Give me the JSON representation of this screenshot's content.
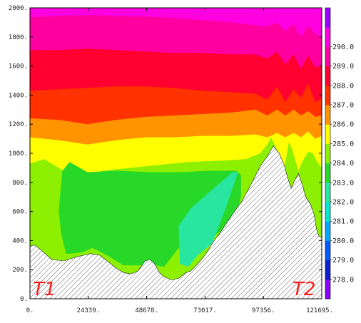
{
  "chart_data": {
    "type": "filled-contour",
    "title": "",
    "xlabel": "",
    "ylabel": "",
    "xlim": [
      0,
      121695
    ],
    "ylim": [
      0,
      2000
    ],
    "x_tick_labels": [
      "0.",
      "24339.",
      "48678.",
      "73017.",
      "97356.",
      "121695."
    ],
    "y_tick_labels": [
      "0.",
      "200.",
      "400.",
      "600.",
      "800.",
      "1000.",
      "1200.",
      "1400.",
      "1600.",
      "1800.",
      "2000."
    ],
    "annotations": {
      "left": "T1",
      "right": "T2"
    },
    "terrain_hatch": true,
    "colorbar": {
      "tick_labels": [
        "278.0",
        "279.0",
        "280.0",
        "281.0",
        "282.0",
        "283.0",
        "284.0",
        "285.0",
        "286.0",
        "287.0",
        "288.0",
        "289.0",
        "290.0"
      ],
      "colors": [
        "#8a00ff",
        "#1020c8",
        "#0058ff",
        "#00a8ff",
        "#00e8d0",
        "#28e6a0",
        "#28d828",
        "#8cf000",
        "#ffff00",
        "#ff9400",
        "#ff3200",
        "#ff0030",
        "#ff00a0",
        "#ff00e0",
        "#9a00ff"
      ]
    },
    "contour_bands": [
      {
        "level": "281.0-282.0",
        "color": "#28e6a0",
        "x": [
          62000,
          67000,
          76000,
          84500,
          86800,
          82000,
          76000,
          70000,
          66000,
          62500,
          62000
        ],
        "y": [
          500,
          620,
          750,
          870,
          870,
          640,
          380,
          300,
          220,
          240,
          500
        ]
      },
      {
        "level": "282.0-283.0",
        "color": "#28d828",
        "x": [
          12000,
          13500,
          16500,
          24000,
          36000,
          50000,
          63000,
          75000,
          86000,
          88000,
          88000,
          85000,
          74000,
          62000,
          56000,
          52000,
          46000,
          39000,
          32000,
          26000,
          22000,
          17000,
          15000,
          13000,
          12000
        ],
        "y": [
          600,
          880,
          940,
          870,
          880,
          870,
          870,
          880,
          880,
          850,
          700,
          500,
          420,
          350,
          220,
          230,
          230,
          230,
          300,
          350,
          320,
          310,
          310,
          450,
          600
        ]
      },
      {
        "level": "283.0-284.0",
        "color": "#8cf000",
        "x": [
          0,
          6000,
          12000,
          15000,
          20000,
          30000,
          42000,
          54000,
          66000,
          80000,
          90000,
          96000,
          99000,
          100500,
          102000,
          104500,
          106000,
          107000,
          108000,
          109500,
          110500,
          112000,
          113500,
          116000,
          118000,
          119500,
          121695,
          121695,
          0
        ],
        "y": [
          930,
          960,
          900,
          870,
          780,
          880,
          900,
          920,
          940,
          950,
          960,
          1000,
          1060,
          1110,
          1060,
          980,
          900,
          980,
          1080,
          1020,
          960,
          880,
          940,
          1010,
          1000,
          950,
          900,
          0,
          0
        ]
      },
      {
        "level": "284.0-285.0",
        "color": "#ffff00",
        "x": [
          0,
          12000,
          24000,
          36000,
          48000,
          60000,
          72000,
          84000,
          94000,
          99000,
          103000,
          106500,
          110000,
          113000,
          116000,
          119000,
          121695,
          121695,
          0
        ],
        "y": [
          1110,
          1090,
          1060,
          1090,
          1110,
          1110,
          1120,
          1120,
          1130,
          1110,
          1140,
          1110,
          1140,
          1110,
          1150,
          1100,
          1120,
          0,
          0
        ]
      },
      {
        "level": "285.0-286.0",
        "color": "#ff9400",
        "x": [
          0,
          12000,
          24000,
          36000,
          48000,
          60000,
          72000,
          84000,
          94000,
          99000,
          103000,
          106500,
          110000,
          113000,
          116000,
          119000,
          121695,
          121695,
          0
        ],
        "y": [
          1240,
          1230,
          1200,
          1230,
          1250,
          1260,
          1270,
          1280,
          1300,
          1260,
          1300,
          1260,
          1300,
          1260,
          1290,
          1250,
          1260,
          0,
          0
        ]
      },
      {
        "level": "286.0-287.0",
        "color": "#ff3200",
        "x": [
          0,
          12000,
          24000,
          36000,
          48000,
          60000,
          72000,
          84000,
          94000,
          99000,
          103000,
          106500,
          110000,
          113000,
          116000,
          119000,
          121695,
          121695,
          0
        ],
        "y": [
          1430,
          1440,
          1450,
          1460,
          1460,
          1450,
          1430,
          1420,
          1410,
          1370,
          1460,
          1350,
          1440,
          1380,
          1480,
          1350,
          1380,
          0,
          0
        ]
      },
      {
        "level": "287.0-288.0",
        "color": "#ff0030",
        "x": [
          0,
          12000,
          24000,
          36000,
          48000,
          60000,
          72000,
          84000,
          94000,
          99000,
          103000,
          106500,
          110000,
          113000,
          116000,
          119000,
          121695,
          121695,
          0
        ],
        "y": [
          1710,
          1710,
          1720,
          1710,
          1700,
          1690,
          1690,
          1680,
          1680,
          1650,
          1700,
          1610,
          1680,
          1580,
          1670,
          1590,
          1600,
          0,
          0
        ]
      },
      {
        "level": "288.0-289.0",
        "color": "#ff00a0",
        "x": [
          0,
          12000,
          24000,
          36000,
          48000,
          60000,
          72000,
          84000,
          94000,
          99000,
          103000,
          106500,
          110000,
          113000,
          116000,
          119000,
          121695,
          121695,
          0
        ],
        "y": [
          1935,
          1945,
          1950,
          1945,
          1940,
          1930,
          1915,
          1900,
          1880,
          1870,
          1900,
          1840,
          1890,
          1800,
          1880,
          1820,
          1800,
          0,
          0
        ]
      },
      {
        "level": "289.0-290.0",
        "color": "#ff00e0",
        "x": [
          0,
          121695,
          121695,
          0
        ],
        "y": [
          2000,
          2000,
          0,
          0
        ]
      }
    ],
    "terrain": {
      "x": [
        0,
        2000,
        5000,
        9000,
        14000,
        20000,
        25000,
        29000,
        33000,
        36000,
        39000,
        42000,
        45000,
        48000,
        50000,
        52000,
        54000,
        56000,
        59000,
        62000,
        65000,
        67000,
        70000,
        73000,
        76000,
        80000,
        84000,
        88000,
        92000,
        96000,
        99000,
        101500,
        104000,
        106000,
        107500,
        109000,
        110500,
        112000,
        113500,
        115000,
        117000,
        118500,
        119500,
        120500,
        121695
      ],
      "y": [
        360,
        370,
        330,
        270,
        260,
        290,
        310,
        300,
        250,
        210,
        180,
        170,
        190,
        260,
        270,
        240,
        180,
        150,
        130,
        140,
        180,
        190,
        240,
        300,
        380,
        470,
        570,
        660,
        780,
        910,
        980,
        1050,
        1000,
        920,
        830,
        760,
        820,
        860,
        790,
        700,
        650,
        580,
        480,
        430,
        420
      ]
    }
  }
}
